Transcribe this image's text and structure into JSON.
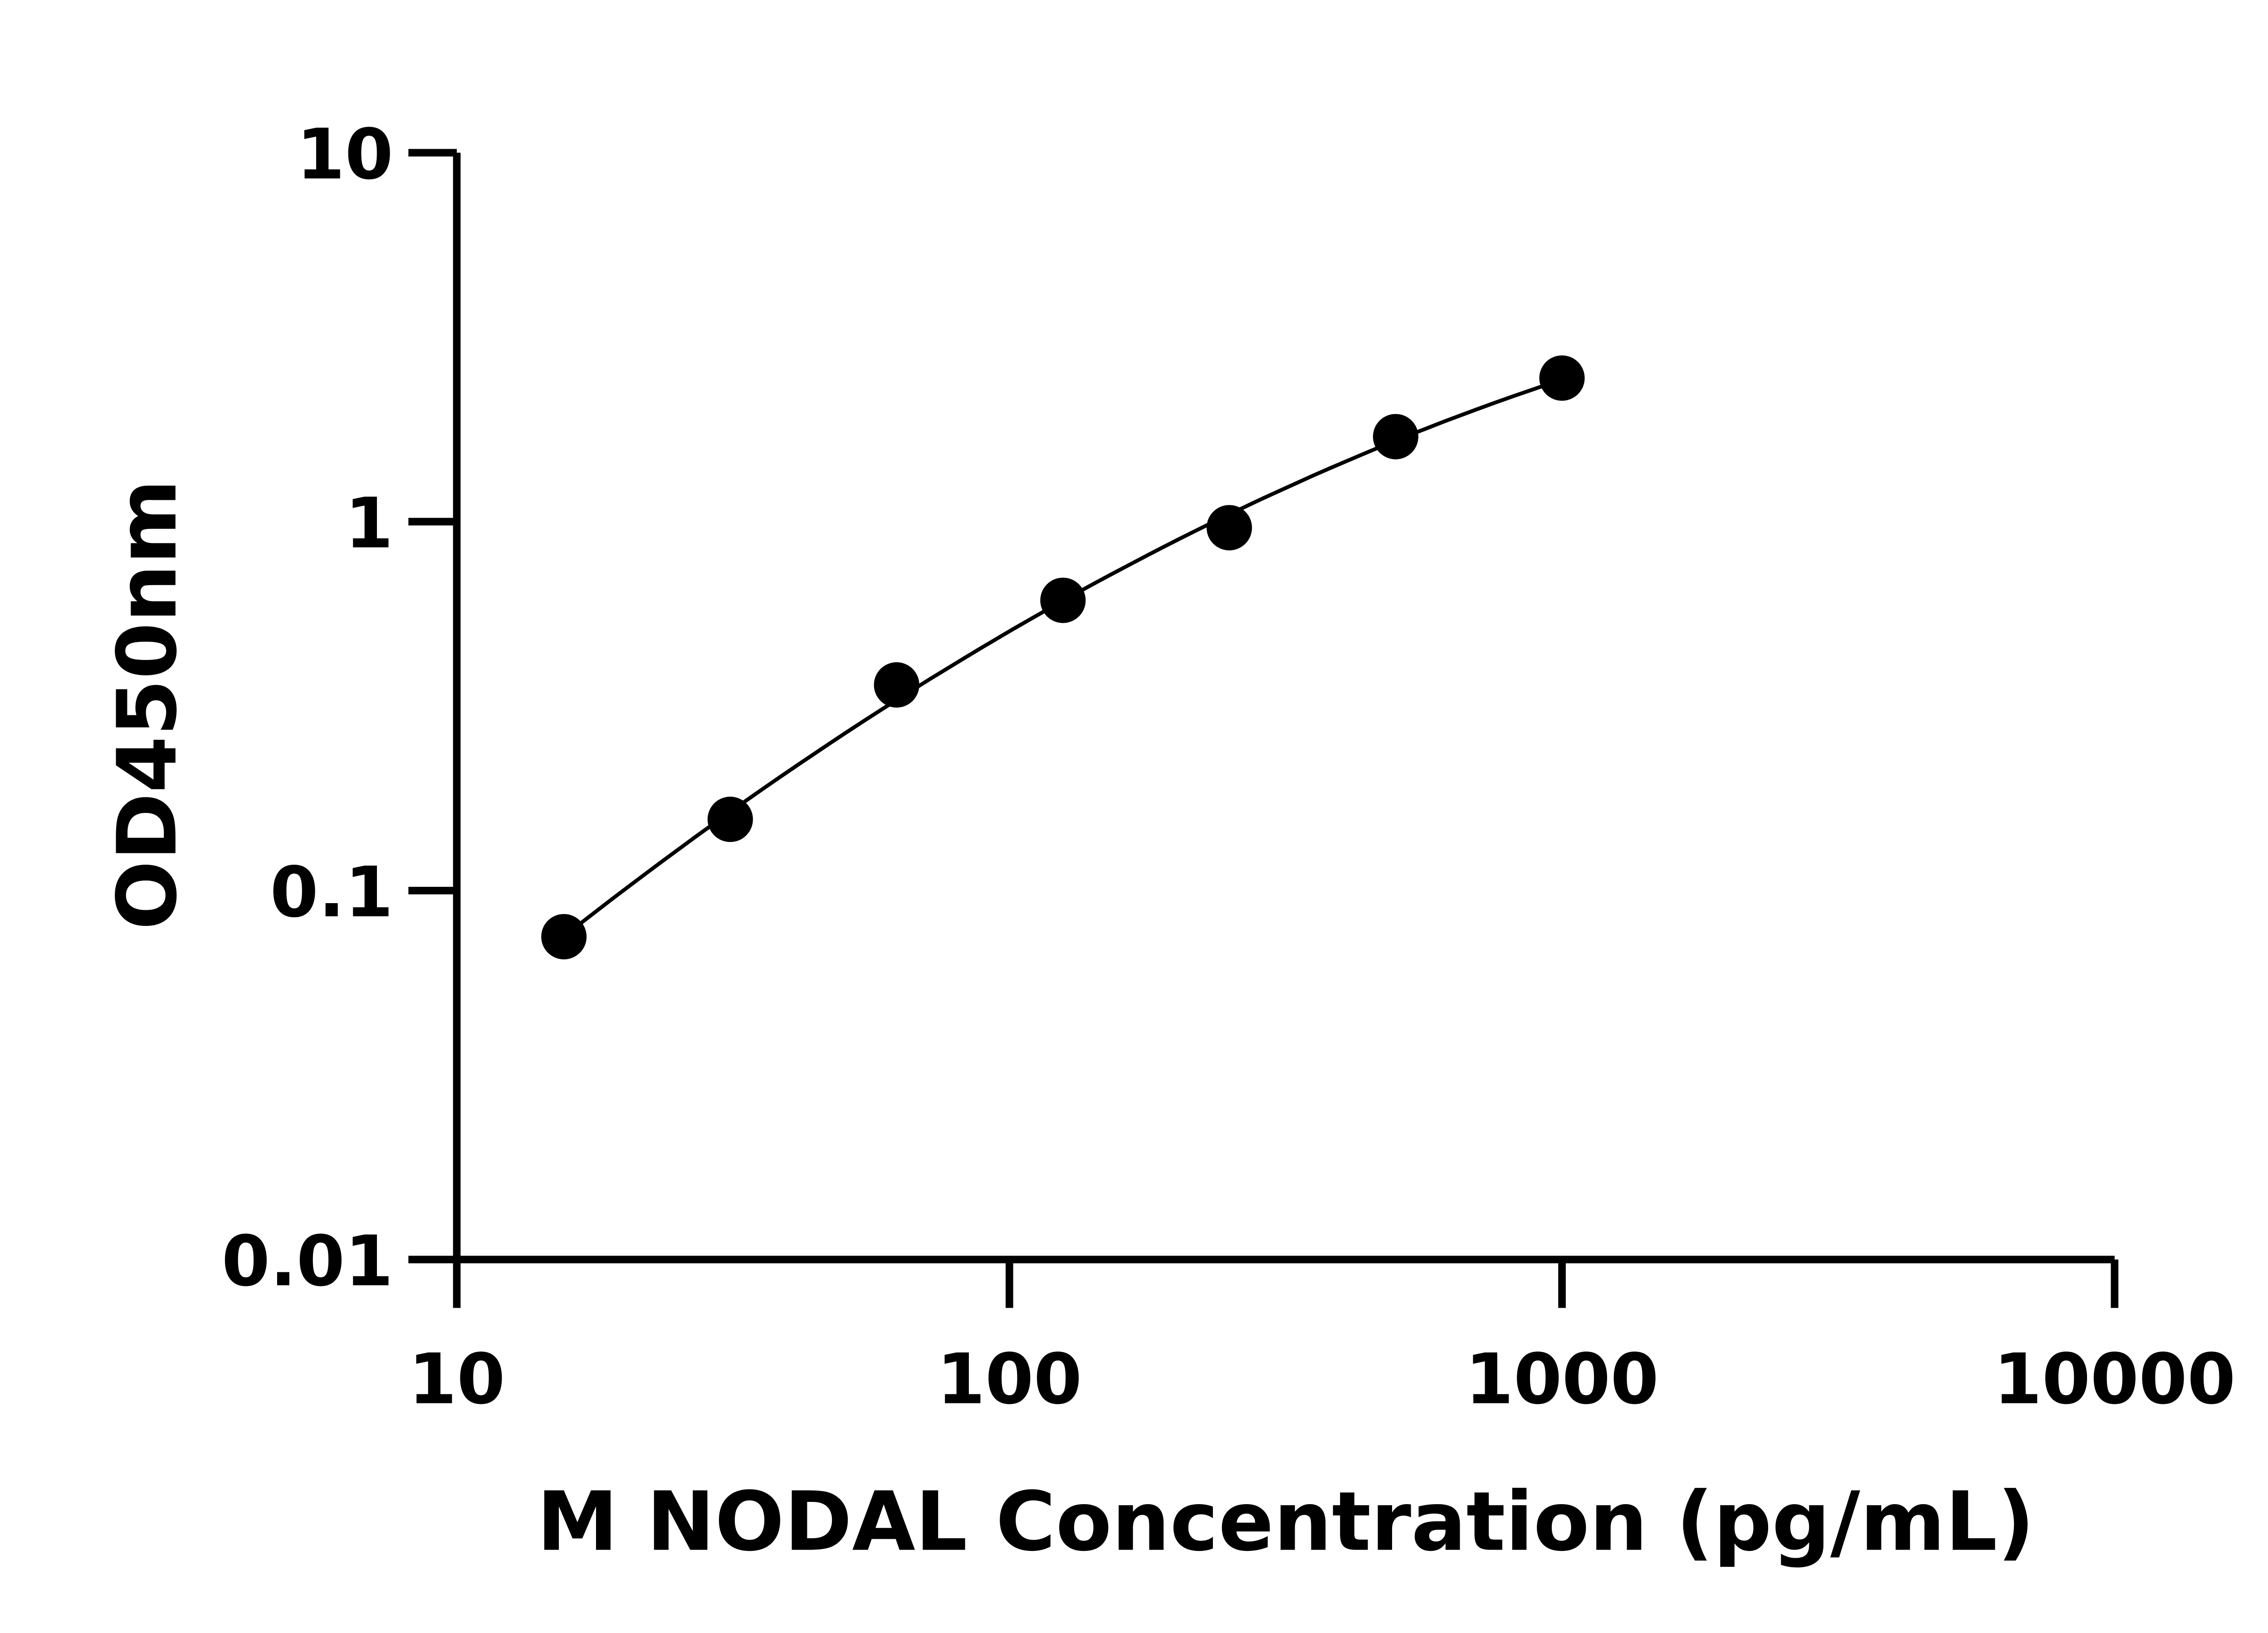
{
  "chart_data": {
    "type": "scatter",
    "title": "",
    "xlabel": "M NODAL Concentration (pg/mL)",
    "ylabel": "OD450nm",
    "x_scale": "log",
    "y_scale": "log",
    "xlim": [
      10,
      10000
    ],
    "ylim": [
      0.01,
      10
    ],
    "x_ticks": [
      "10",
      "100",
      "1000",
      "10000"
    ],
    "y_ticks": [
      "0.01",
      "0.1",
      "1",
      "10"
    ],
    "grid": false,
    "legend": "none",
    "colors": {
      "points": "#000000",
      "curve": "#000000",
      "axes": "#000000"
    },
    "series": [
      {
        "x": [
          15.625,
          31.25,
          62.5,
          125,
          250,
          500,
          1000
        ],
        "y": [
          0.075,
          0.156,
          0.361,
          0.612,
          0.963,
          1.7,
          2.45
        ]
      }
    ],
    "fit_curve": "smooth fitted line through the points"
  }
}
